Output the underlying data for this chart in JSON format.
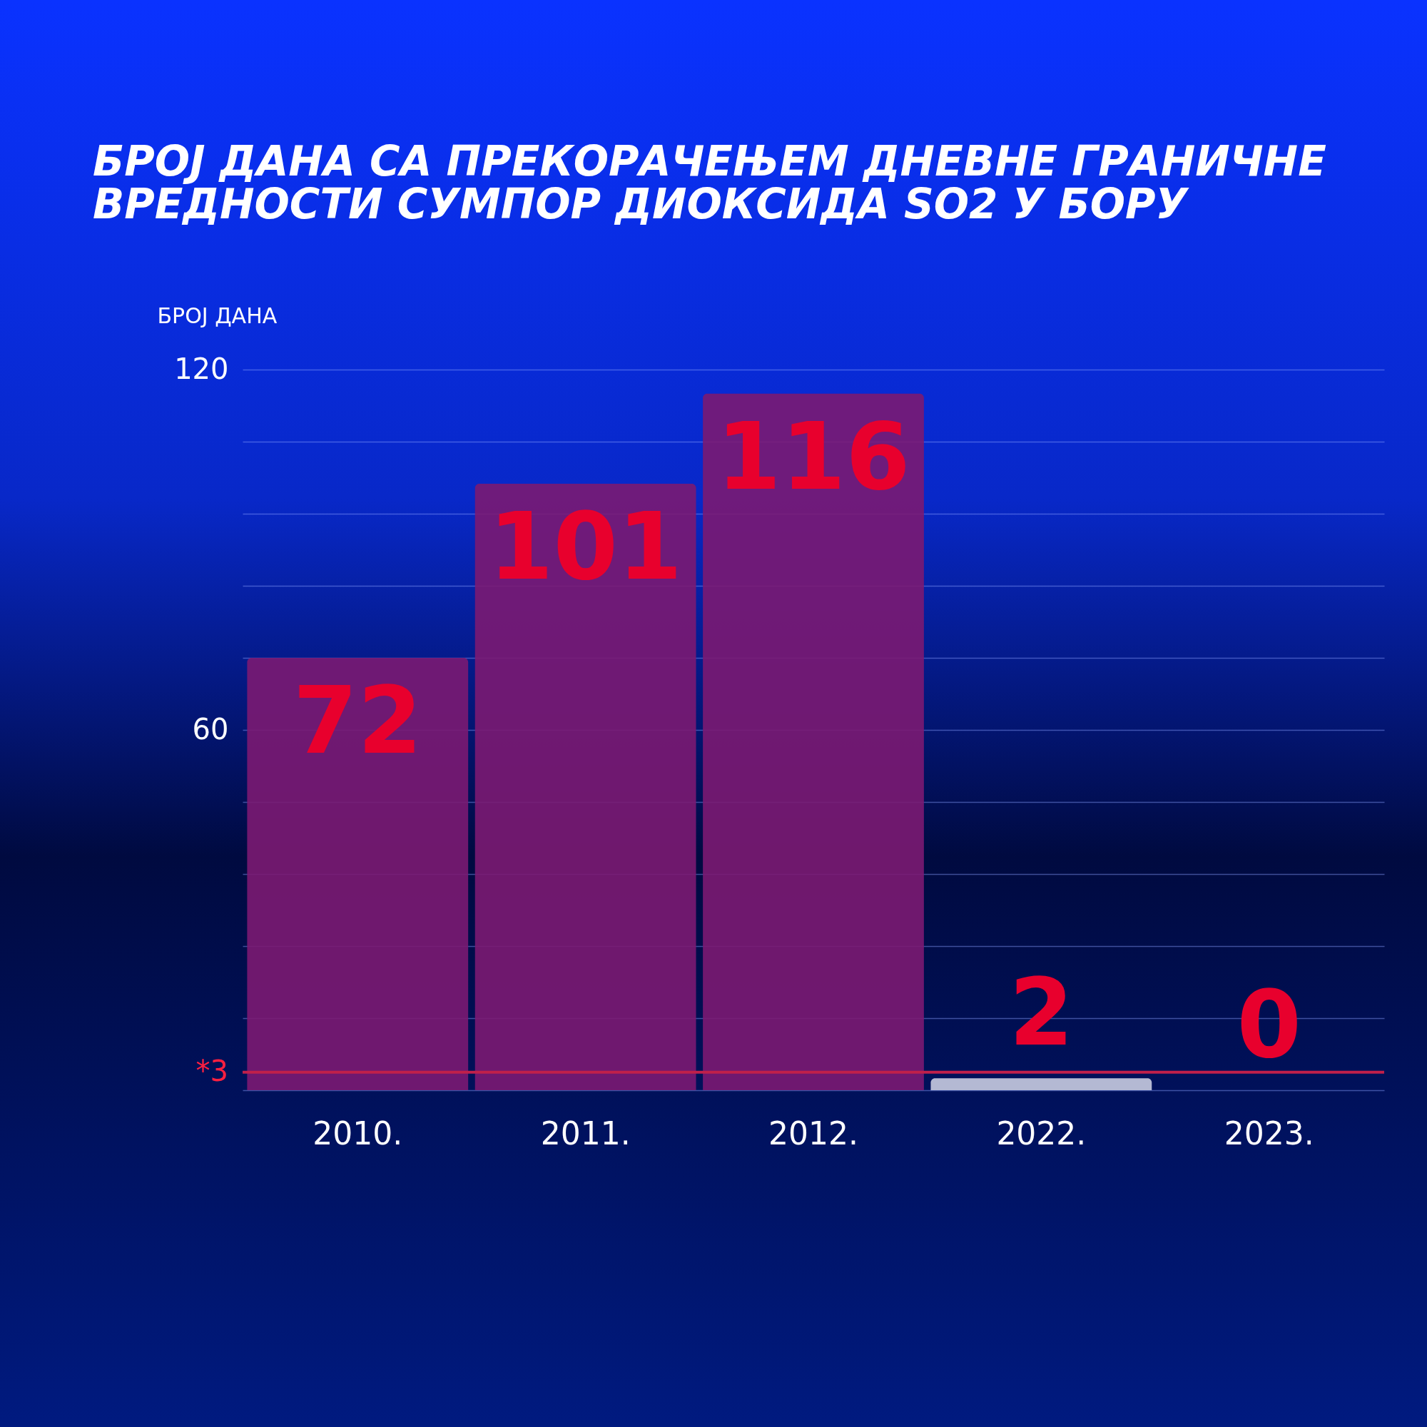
{
  "chart_data": {
    "type": "bar",
    "title": [
      "БРОЈ ДАНА СА ПРЕКОРАЧЕЊЕМ ДНЕВНЕ ГРАНИЧНЕ",
      "ВРЕДНОСТИ СУМПОР ДИОКСИДА SO2 У БОРУ"
    ],
    "ylabel": "БРОЈ ДАНА",
    "categories": [
      "2010.",
      "2011.",
      "2012.",
      "2022.",
      "2023."
    ],
    "values": [
      72,
      101,
      116,
      2,
      0
    ],
    "colors": [
      "#7b1a72",
      "#7b1a72",
      "#7b1a72",
      "#c8cce0",
      "#ffffff"
    ],
    "data_labels": true,
    "ylim": [
      0,
      120
    ],
    "yticks": [
      {
        "value": 0,
        "label": null
      },
      {
        "value": 12,
        "label": null
      },
      {
        "value": 24,
        "label": null
      },
      {
        "value": 36,
        "label": null
      },
      {
        "value": 48,
        "label": null
      },
      60,
      {
        "value": 72,
        "label": null
      },
      {
        "value": 84,
        "label": null
      },
      {
        "value": 96,
        "label": null
      },
      {
        "value": 108,
        "label": null
      },
      120
    ],
    "grid": "y",
    "ref_lines": [
      {
        "axis": "y",
        "value": 3,
        "label": "*3",
        "color": "#c0204a"
      }
    ]
  }
}
